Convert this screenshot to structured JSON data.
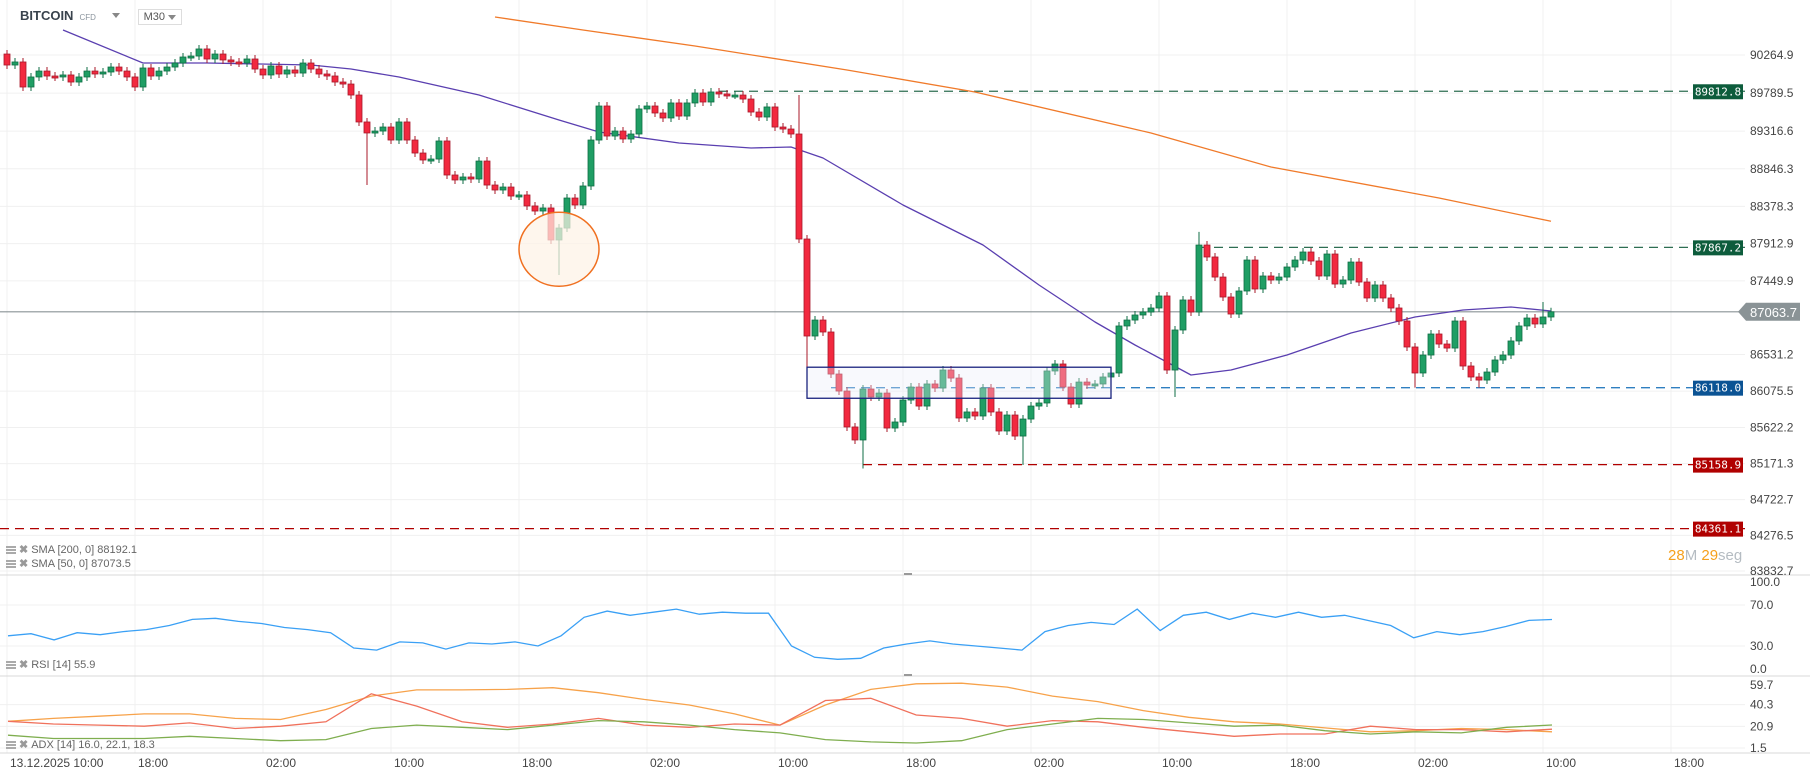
{
  "header": {
    "symbol": "BITCOIN",
    "instrument_type": "CFD",
    "timeframe": "M30"
  },
  "timer": {
    "minutes": "28",
    "minutes_unit": "M",
    "seconds": "29",
    "seconds_unit": "seg"
  },
  "legends": {
    "sma200": "SMA [200, 0] 88192.1",
    "sma50": "SMA [50, 0] 87073.5",
    "rsi": "RSI [14] 55.9",
    "adx": "ADX [14] 16.0, 22.1, 18.3"
  },
  "colors": {
    "up": "#1f9e64",
    "up_border": "#0f6e44",
    "down": "#f2293f",
    "down_border": "#a8182a",
    "sma200": "#f07a2a",
    "sma50": "#5a3fb0",
    "rsi": "#3aa0f5",
    "adx": "#f7a24a",
    "plus_di": "#7fae4f",
    "minus_di": "#f0715c",
    "current_price": "#8a9396"
  },
  "chart_data": {
    "type": "candlestick",
    "interval": "M30",
    "first_bar": "13.12 10:00",
    "first_open": 90277,
    "closes": [
      90140,
      90178,
      89866,
      89991,
      90065,
      90003,
      89991,
      90016,
      89928,
      89991,
      90065,
      90028,
      90053,
      90115,
      90065,
      89991,
      89866,
      90103,
      90003,
      90065,
      90115,
      90165,
      90240,
      90252,
      90340,
      90215,
      90277,
      90203,
      90178,
      90165,
      90215,
      90090,
      90016,
      90128,
      90028,
      90078,
      90040,
      90165,
      90090,
      90028,
      90003,
      89928,
      89903,
      89766,
      89430,
      89293,
      89317,
      89367,
      89205,
      89430,
      89205,
      89043,
      88956,
      88968,
      89193,
      88769,
      88707,
      88744,
      88719,
      88943,
      88644,
      88582,
      88619,
      88507,
      88520,
      88383,
      88320,
      88358,
      87959,
      88108,
      88482,
      88395,
      88632,
      89205,
      89629,
      89255,
      89317,
      89218,
      89280,
      89592,
      89629,
      89542,
      89480,
      89667,
      89504,
      89667,
      89791,
      89679,
      89804,
      89779,
      89766,
      89766,
      89716,
      89554,
      89492,
      89617,
      89367,
      89342,
      89280,
      87971,
      86762,
      86961,
      86812,
      86288,
      86076,
      85628,
      85466,
      86101,
      86002,
      86051,
      85615,
      85690,
      85964,
      86126,
      85889,
      86164,
      86114,
      86338,
      86238,
      85740,
      85815,
      85765,
      86114,
      85815,
      85578,
      85777,
      85515,
      85727,
      85889,
      85927,
      86326,
      86413,
      86126,
      85914,
      86188,
      86151,
      86164,
      86251,
      86301,
      86887,
      86961,
      87024,
      87061,
      87111,
      87261,
      86338,
      86837,
      87211,
      87061,
      87896,
      87747,
      87497,
      87248,
      87036,
      87323,
      87709,
      87348,
      87510,
      87460,
      87497,
      87622,
      87709,
      87809,
      87697,
      87510,
      87784,
      87410,
      87460,
      87684,
      87435,
      87236,
      87398,
      87236,
      87111,
      86949,
      86625,
      86301,
      86525,
      86787,
      86662,
      86612,
      86949,
      86388,
      86251,
      86213,
      86313,
      86463,
      86525,
      86700,
      86887,
      86986,
      86912,
      86999,
      87063.7
    ],
    "wicks": [
      {
        "t": "14.12 08:30",
        "low": 88644
      },
      {
        "t": "14.12 20:30",
        "low": 87522
      },
      {
        "t": "15.12 11:30",
        "high": 89766
      },
      {
        "t": "15.12 12:00",
        "low": 86273
      },
      {
        "t": "15.12 15:30",
        "low": 85110
      },
      {
        "t": "16.12 01:30",
        "low": 85154
      },
      {
        "t": "16.12 11:00",
        "low": 86002
      },
      {
        "t": "16.12 12:30",
        "high": 88060
      },
      {
        "t": "17.12 02:00",
        "low": 86118
      },
      {
        "t": "17.12 06:00",
        "low": 86118
      },
      {
        "t": "17.12 10:00",
        "high": 87186
      }
    ],
    "price_axis": {
      "range": [
        83832.7,
        90264.9
      ],
      "ticks": [
        "90264.9",
        "89789.5",
        "89316.6",
        "88846.3",
        "88378.3",
        "87912.9",
        "87449.9",
        "86531.2",
        "86075.5",
        "85622.2",
        "85171.3",
        "84722.7",
        "84276.5",
        "83832.7"
      ]
    },
    "time_axis": {
      "ticks": [
        {
          "t": "13.12 10:00",
          "label": "13.12.2025  10:00"
        },
        {
          "t": "13.12 18:00",
          "label": "18:00"
        },
        {
          "t": "14.12 02:00",
          "label": "02:00"
        },
        {
          "t": "14.12 10:00",
          "label": "10:00"
        },
        {
          "t": "14.12 18:00",
          "label": "18:00"
        },
        {
          "t": "15.12 02:00",
          "label": "02:00"
        },
        {
          "t": "15.12 10:00",
          "label": "10:00"
        },
        {
          "t": "15.12 18:00",
          "label": "18:00"
        },
        {
          "t": "16.12 02:00",
          "label": "02:00"
        },
        {
          "t": "16.12 10:00",
          "label": "10:00"
        },
        {
          "t": "16.12 18:00",
          "label": "18:00"
        },
        {
          "t": "17.12 02:00",
          "label": "02:00"
        },
        {
          "t": "17.12 10:00",
          "label": "10:00"
        },
        {
          "t": "17.12 18:00",
          "label": "18:00"
        }
      ]
    },
    "current_price": {
      "value": 87063.7,
      "label": "87063.7"
    },
    "levels": [
      {
        "value": 89812.8,
        "label": "89812.8",
        "from": "15.12 06:30",
        "color": "#2e6e52",
        "label_bg": "#0d5c3c"
      },
      {
        "value": 87867.2,
        "label": "87867.2",
        "from": "16.12 12:30",
        "color": "#2e6e52",
        "label_bg": "#0d5c3c"
      },
      {
        "value": 86118.0,
        "label": "86118.0",
        "from": "15.12 13:30",
        "color": "#2f7fc0",
        "label_bg": "#0b5394"
      },
      {
        "value": 85158.9,
        "label": "85158.9",
        "from": "15.12 15:30",
        "color": "#b00000",
        "label_bg": "#b00000"
      },
      {
        "value": 84361.1,
        "label": "84361.1",
        "from": null,
        "color": "#b00000",
        "label_bg": "#b00000"
      }
    ],
    "rectangle": {
      "from": "15.12 12:00",
      "to": "16.12 07:00",
      "top": 86373,
      "bottom": 85986,
      "color": "#1a237e"
    },
    "ellipse": {
      "center": "14.12 20:30",
      "price": 87844,
      "color": "#f07020"
    },
    "sma200": [
      [
        "14.12 16:30",
        90739
      ],
      [
        "14.12 22:00",
        90577
      ],
      [
        "15.12 05:00",
        90377
      ],
      [
        "15.12 14:30",
        90078
      ],
      [
        "15.12 22:30",
        89804
      ],
      [
        "16.12 09:30",
        89293
      ],
      [
        "16.12 17:00",
        88869
      ],
      [
        "17.12 03:30",
        88482
      ],
      [
        "17.12 10:30",
        88192.1
      ]
    ],
    "sma50": [
      [
        "13.12 13:30",
        90577
      ],
      [
        "13.12 18:30",
        90165
      ],
      [
        "13.12 22:30",
        90165
      ],
      [
        "14.12 05:00",
        90140
      ],
      [
        "14.12 07:30",
        90090
      ],
      [
        "14.12 10:30",
        89991
      ],
      [
        "14.12 15:30",
        89766
      ],
      [
        "14.12 20:30",
        89455
      ],
      [
        "14.12 23:00",
        89305
      ],
      [
        "15.12 04:00",
        89168
      ],
      [
        "15.12 08:30",
        89106
      ],
      [
        "15.12 11:00",
        89118
      ],
      [
        "15.12 13:00",
        88981
      ],
      [
        "15.12 18:00",
        88395
      ],
      [
        "15.12 23:00",
        87896
      ],
      [
        "16.12 02:30",
        87398
      ],
      [
        "16.12 06:00",
        86937
      ],
      [
        "16.12 08:30",
        86650
      ],
      [
        "16.12 12:00",
        86276
      ],
      [
        "16.12 14:30",
        86338
      ],
      [
        "16.12 18:00",
        86525
      ],
      [
        "16.12 22:00",
        86799
      ],
      [
        "17.12 02:00",
        86999
      ],
      [
        "17.12 05:00",
        87086
      ],
      [
        "17.12 08:00",
        87124
      ],
      [
        "17.12 10:30",
        87073.5
      ]
    ],
    "rsi": {
      "ticks": [
        "100.0",
        "70.0",
        "30.0",
        "0.0"
      ],
      "values": [
        40,
        42,
        36,
        43,
        41,
        44,
        46,
        50,
        56,
        57,
        54,
        52,
        48,
        46,
        43,
        28,
        26,
        34,
        33,
        27,
        33,
        32,
        34,
        30,
        40,
        58,
        64,
        60,
        63,
        66,
        61,
        63,
        62,
        62,
        30,
        19,
        17,
        18,
        28,
        32,
        35,
        32,
        30,
        28,
        26,
        44,
        50,
        53,
        51,
        66,
        45,
        60,
        63,
        56,
        62,
        58,
        63,
        58,
        60,
        55,
        50,
        38,
        44,
        41,
        44,
        49,
        55,
        55.9
      ]
    },
    "adx": {
      "ticks": [
        "59.7",
        "40.3",
        "20.9",
        "1.5"
      ],
      "adx": [
        25.4,
        28,
        30,
        32,
        32,
        28,
        27,
        36,
        48,
        53.5,
        53.5,
        54,
        55.5,
        51,
        45,
        40,
        32,
        22,
        40,
        54,
        59,
        59.5,
        56,
        48,
        43,
        35,
        29,
        25,
        23,
        19.5,
        16,
        17,
        19,
        18,
        16.0
      ],
      "plus_di": [
        13,
        10,
        10,
        10,
        12,
        10,
        8,
        9,
        19,
        22,
        20,
        18,
        22,
        26,
        25,
        22,
        18,
        15,
        9,
        7,
        6,
        8,
        18,
        23,
        28,
        27,
        24,
        21,
        22,
        17,
        14,
        16,
        15,
        20,
        22.1
      ],
      "minus_di": [
        25.4,
        23,
        22,
        21,
        24,
        19,
        21,
        25,
        50,
        39,
        25,
        20,
        23,
        28,
        22,
        20,
        23,
        22,
        44,
        46,
        31,
        28,
        21,
        26,
        25,
        20,
        16,
        12,
        14,
        14,
        21,
        18,
        18,
        16,
        18.3
      ]
    }
  }
}
